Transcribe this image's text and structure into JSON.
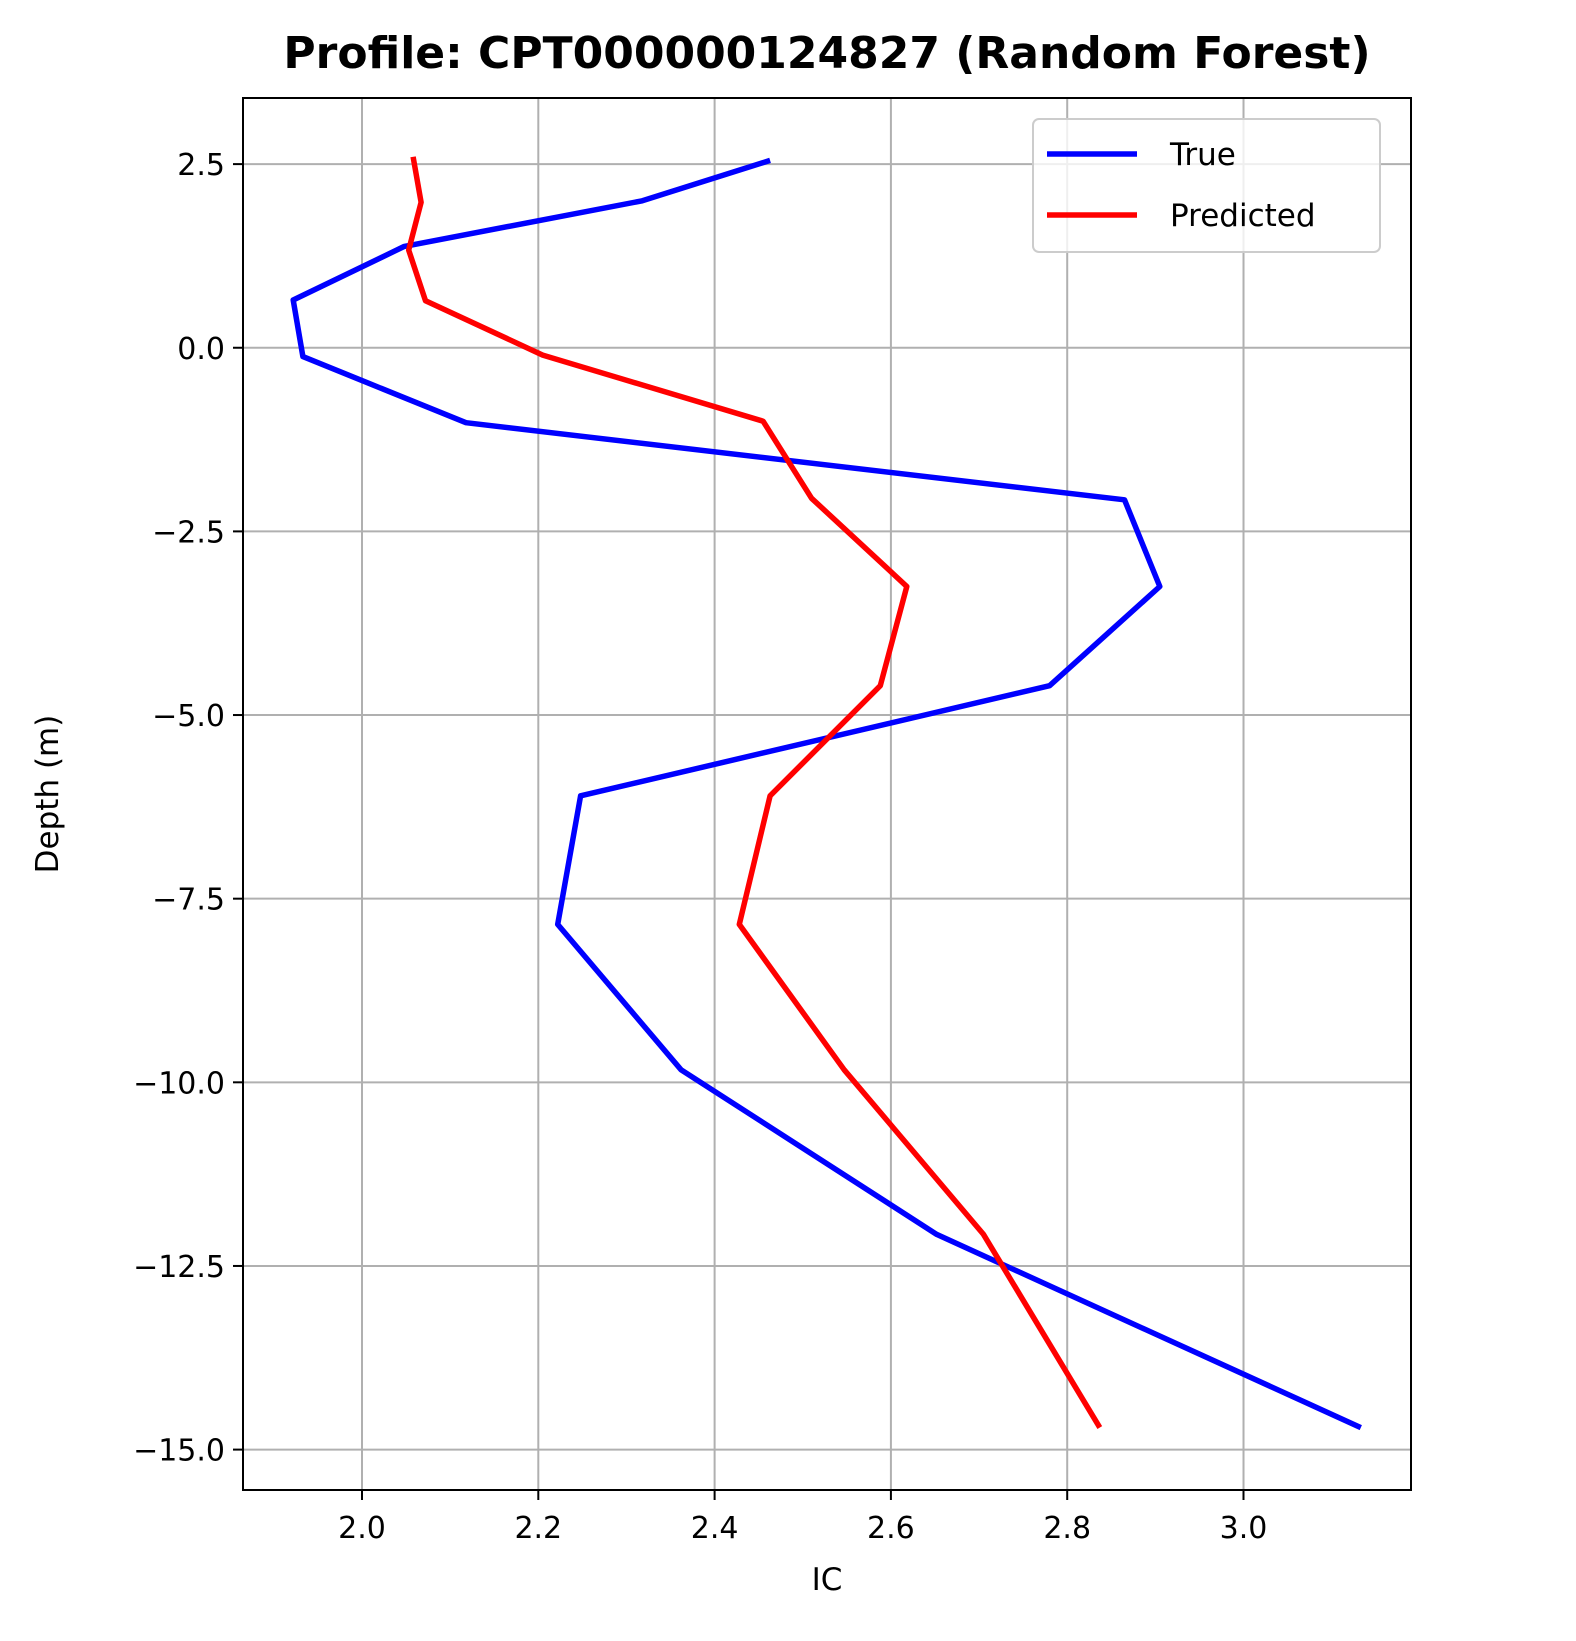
{
  "chart_data": {
    "type": "line",
    "title": "Profile: CPT000000124827 (Random Forest)",
    "xlabel": "IC",
    "ylabel": "Depth (m)",
    "xlim": [
      1.865,
      3.19
    ],
    "ylim": [
      -15.55,
      3.4
    ],
    "x_ticks": [
      2.0,
      2.2,
      2.4,
      2.6,
      2.8,
      3.0
    ],
    "x_tick_labels": [
      "2.0",
      "2.2",
      "2.4",
      "2.6",
      "2.8",
      "3.0"
    ],
    "y_ticks": [
      2.5,
      0.0,
      -2.5,
      -5.0,
      -7.5,
      -10.0,
      -12.5,
      -15.0
    ],
    "y_tick_labels": [
      "2.5",
      "0.0",
      "−2.5",
      "−5.0",
      "−7.5",
      "−10.0",
      "−12.5",
      "−15.0"
    ],
    "grid": true,
    "legend_position": "upper-right",
    "series": [
      {
        "name": "True",
        "color": "#0000ff",
        "points": [
          [
            2.463,
            2.55
          ],
          [
            2.318,
            2.0
          ],
          [
            2.048,
            1.38
          ],
          [
            1.922,
            0.65
          ],
          [
            1.933,
            -0.12
          ],
          [
            2.118,
            -1.02
          ],
          [
            2.865,
            -2.07
          ],
          [
            2.905,
            -3.25
          ],
          [
            2.78,
            -4.6
          ],
          [
            2.248,
            -6.1
          ],
          [
            2.222,
            -7.85
          ],
          [
            2.362,
            -9.83
          ],
          [
            2.652,
            -12.07
          ],
          [
            3.133,
            -14.7
          ]
        ]
      },
      {
        "name": "Predicted",
        "color": "#ff0000",
        "points": [
          [
            2.058,
            2.6
          ],
          [
            2.067,
            1.98
          ],
          [
            2.053,
            1.33
          ],
          [
            2.072,
            0.64
          ],
          [
            2.205,
            -0.1
          ],
          [
            2.455,
            -1.0
          ],
          [
            2.51,
            -2.05
          ],
          [
            2.618,
            -3.25
          ],
          [
            2.588,
            -4.6
          ],
          [
            2.463,
            -6.1
          ],
          [
            2.428,
            -7.85
          ],
          [
            2.547,
            -9.83
          ],
          [
            2.705,
            -12.07
          ],
          [
            2.837,
            -14.7
          ]
        ]
      }
    ]
  }
}
